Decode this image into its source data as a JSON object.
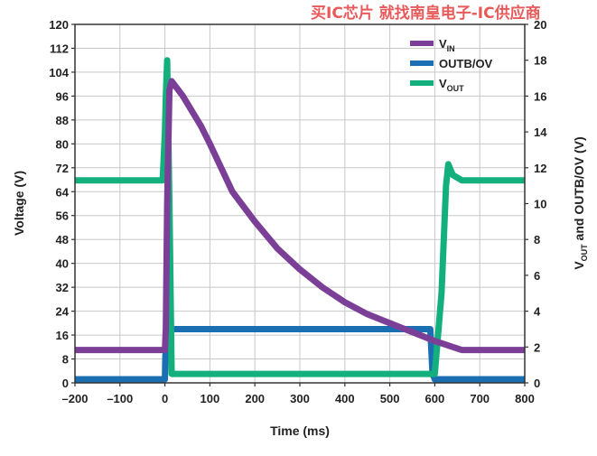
{
  "watermark": "买IC芯片 就找南皇电子-IC供应商",
  "colors": {
    "vin": "#7b3f98",
    "outb": "#1a6fb3",
    "vout": "#13b07e",
    "grid": "#c8c8c8",
    "axis": "#333333"
  },
  "chart_data": {
    "type": "line",
    "title": "",
    "xlabel": "Time (ms)",
    "ylabel_left": "Voltage (V)",
    "ylabel_right": {
      "main": "V",
      "sub": "OUT",
      "rest": " and OUTB/OV (V)"
    },
    "xlim": [
      -200,
      800
    ],
    "ylim_left": [
      0,
      120
    ],
    "ylim_right": [
      0,
      20
    ],
    "x_ticks": [
      -200,
      -100,
      0,
      100,
      200,
      300,
      400,
      500,
      600,
      700,
      800
    ],
    "x_tick_labels": [
      "–200",
      "–100",
      "0",
      "100",
      "200",
      "300",
      "400",
      "500",
      "600",
      "700",
      "800"
    ],
    "y_left_ticks": [
      0,
      8,
      16,
      24,
      32,
      40,
      48,
      56,
      64,
      72,
      80,
      88,
      96,
      104,
      112,
      120
    ],
    "y_right_ticks": [
      0,
      2,
      4,
      6,
      8,
      10,
      12,
      14,
      16,
      18,
      20
    ],
    "grid": true,
    "legend_position": "top-right",
    "series": [
      {
        "name": "V",
        "name_sub": "IN",
        "key": "vin",
        "axis": "left",
        "x": [
          -200,
          0,
          2,
          5,
          10,
          15,
          20,
          40,
          60,
          80,
          100,
          150,
          200,
          250,
          300,
          350,
          400,
          450,
          500,
          550,
          600,
          620,
          640,
          660,
          700,
          750,
          800
        ],
        "y": [
          11,
          11,
          18,
          60,
          98,
          101,
          100,
          96,
          91,
          86,
          80,
          64,
          54,
          45,
          38,
          32,
          27,
          23,
          20,
          17,
          14,
          13,
          12,
          11,
          11,
          11,
          11
        ]
      },
      {
        "name": "OUTB/OV",
        "key": "outb",
        "axis": "right",
        "x": [
          -200,
          0,
          1,
          5,
          10,
          15,
          580,
          590,
          595,
          600,
          800
        ],
        "y": [
          0.2,
          0.2,
          1.5,
          2.2,
          2.9,
          3.0,
          3.0,
          3.0,
          0.5,
          0.2,
          0.2
        ]
      },
      {
        "name": "V",
        "name_sub": "OUT",
        "key": "vout",
        "axis": "right",
        "x": [
          -200,
          -5,
          0,
          2,
          5,
          10,
          15,
          30,
          600,
          615,
          625,
          630,
          640,
          660,
          800
        ],
        "y": [
          11.3,
          11.3,
          14,
          16,
          18.0,
          10,
          0.5,
          0.5,
          0.5,
          5,
          11,
          12.2,
          11.6,
          11.3,
          11.3
        ]
      }
    ]
  }
}
